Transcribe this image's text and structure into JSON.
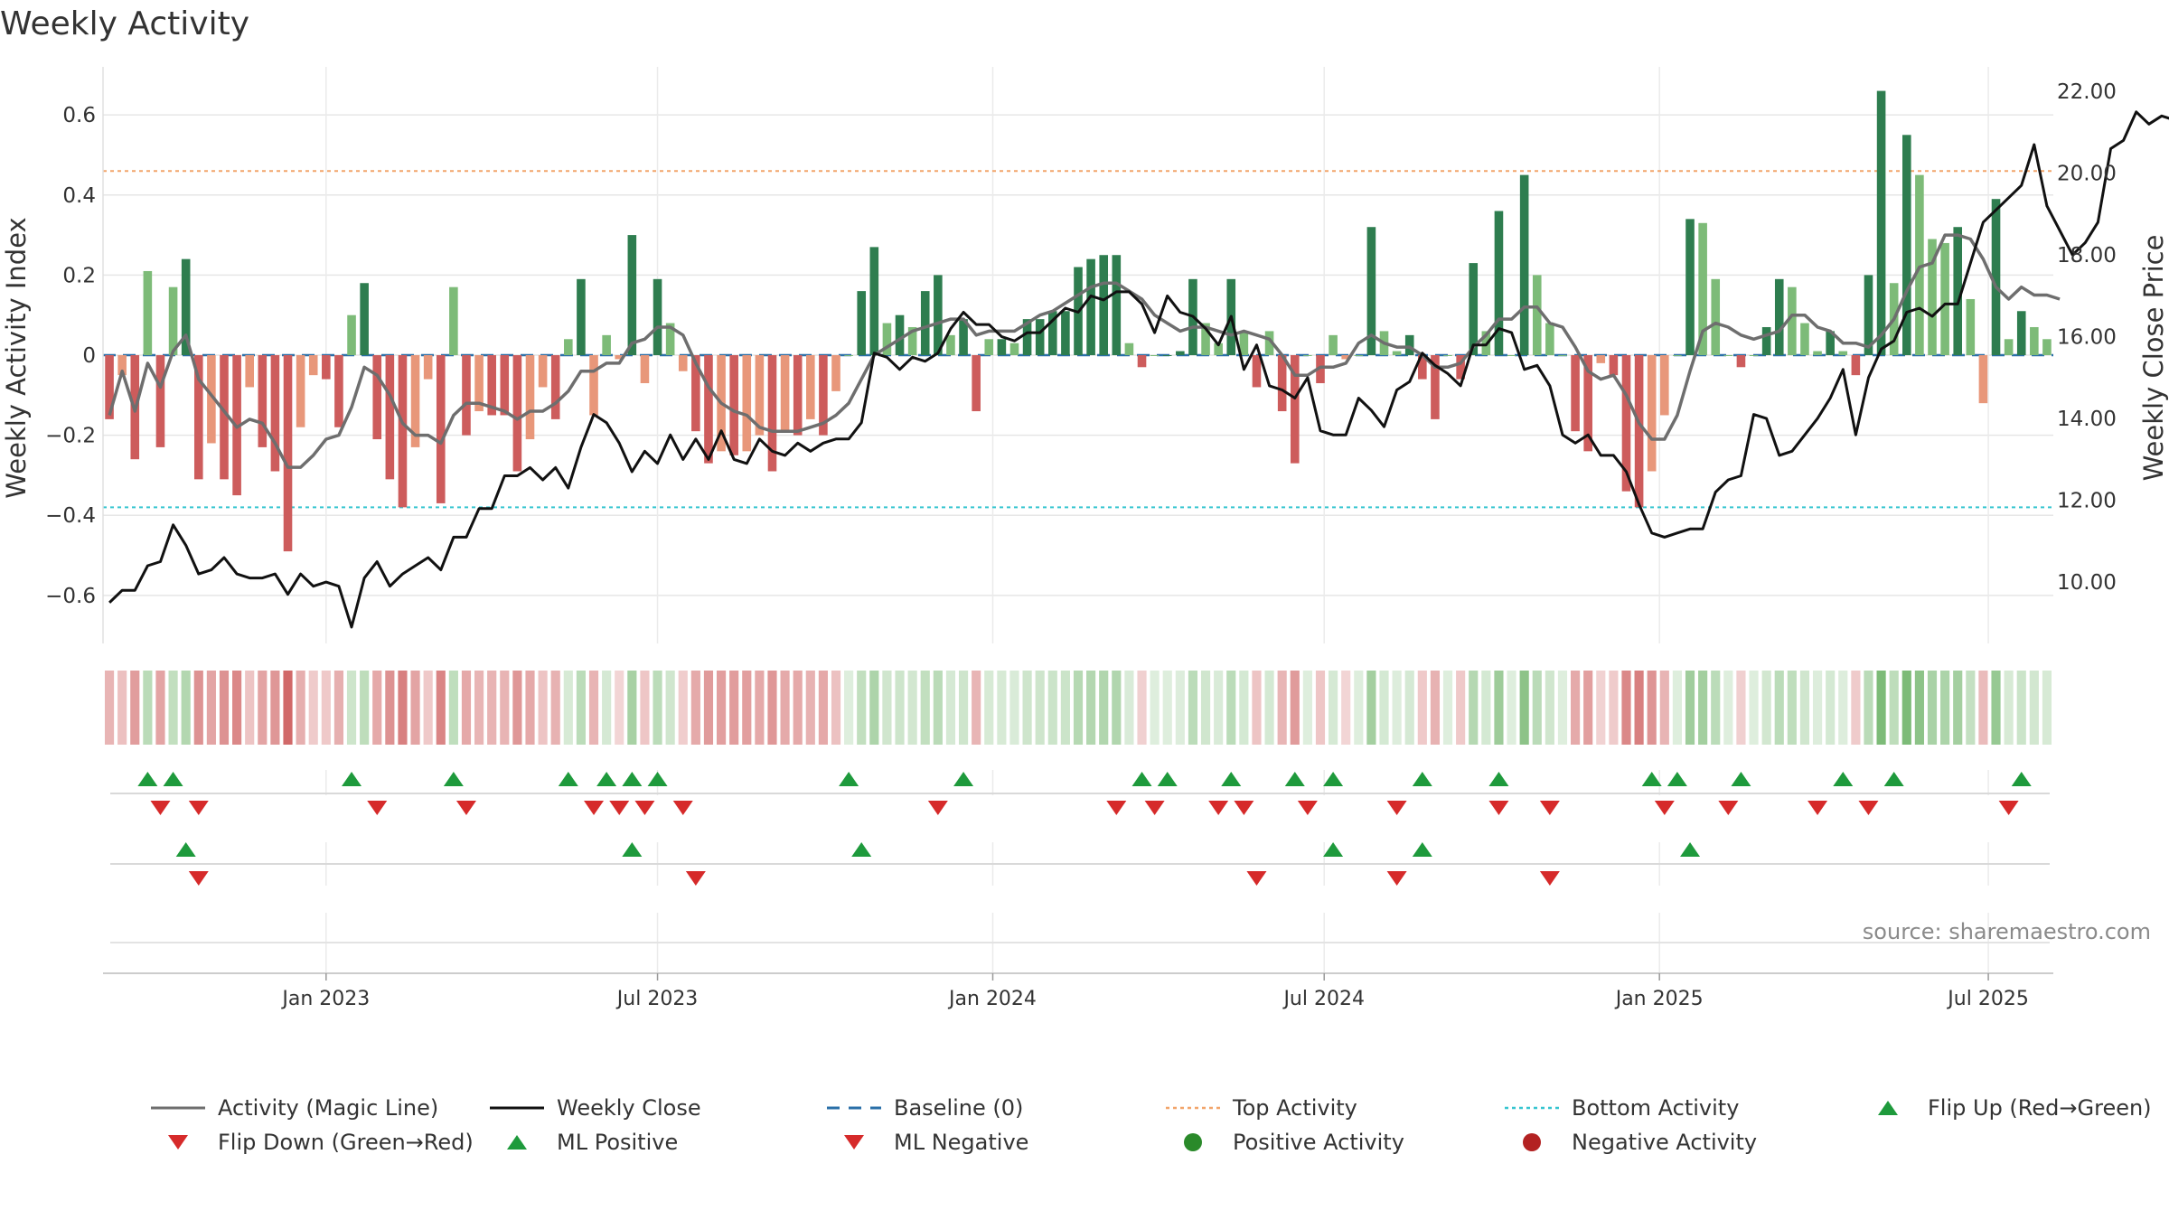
{
  "title": "Weekly Activity",
  "source": "source: sharemaestro.com",
  "colors": {
    "pos_strong": "#2e7d4f",
    "pos_light": "#7dbb78",
    "neg_strong": "#cd5c5c",
    "neg_light": "#e8977a",
    "magic": "#6e6e6e",
    "close": "#111111",
    "baseline": "#2a6fa8",
    "top": "#f2a56b",
    "bottom": "#36c5d0",
    "tri_up": "#1e9a3c",
    "tri_down": "#d62a2a",
    "pos_dot": "#2a8a2a",
    "neg_dot": "#b32222"
  },
  "chart_data": {
    "type": "bar+line",
    "title": "Weekly Activity",
    "ylabel_left": "Weekly Activity Index",
    "ylabel_right": "Weekly Close Price",
    "ylim_left": [
      -0.72,
      0.72
    ],
    "ylim_right": [
      8.5,
      22.6
    ],
    "yticks_left": [
      0.6,
      0.4,
      0.2,
      0,
      -0.2,
      -0.4,
      -0.6
    ],
    "ytick_labels_left": [
      "0.6",
      "0.4",
      "0.2",
      "0",
      "−0.2",
      "−0.4",
      "−0.6"
    ],
    "yticks_right": [
      22,
      20,
      18,
      16,
      14,
      12,
      10
    ],
    "ytick_labels_right": [
      "22.00",
      "20.00",
      "18.00",
      "16.00",
      "14.00",
      "12.00",
      "10.00"
    ],
    "x_start_week_offset": -17,
    "xticks": [
      {
        "label": "Jan 2023",
        "week": 0
      },
      {
        "label": "Jul 2023",
        "week": 26
      },
      {
        "label": "Jan 2024",
        "week": 52.3
      },
      {
        "label": "Jul 2024",
        "week": 78.3
      },
      {
        "label": "Jan 2025",
        "week": 104.6
      },
      {
        "label": "Jul 2025",
        "week": 130.4
      }
    ],
    "top_activity": 0.46,
    "bottom_activity": -0.38,
    "activity": [
      -0.16,
      -0.05,
      -0.26,
      0.21,
      -0.23,
      0.17,
      0.24,
      -0.31,
      -0.22,
      -0.31,
      -0.35,
      -0.08,
      -0.23,
      -0.29,
      -0.49,
      -0.18,
      -0.05,
      -0.06,
      -0.18,
      0.1,
      0.18,
      -0.21,
      -0.31,
      -0.38,
      -0.23,
      -0.06,
      -0.37,
      0.17,
      -0.2,
      -0.14,
      -0.15,
      -0.15,
      -0.29,
      -0.21,
      -0.08,
      -0.16,
      0.04,
      0.19,
      -0.15,
      0.05,
      -0.01,
      0.3,
      -0.07,
      0.19,
      0.08,
      -0.04,
      -0.19,
      -0.27,
      -0.24,
      -0.25,
      -0.24,
      -0.2,
      -0.29,
      -0.19,
      -0.2,
      -0.16,
      -0.2,
      -0.09,
      0.0,
      0.16,
      0.27,
      0.08,
      0.1,
      0.07,
      0.16,
      0.2,
      0.05,
      0.09,
      -0.14,
      0.04,
      0.04,
      0.03,
      0.09,
      0.09,
      0.11,
      0.11,
      0.22,
      0.24,
      0.25,
      0.25,
      0.03,
      -0.03,
      0.0,
      0.0,
      0.01,
      0.19,
      0.08,
      0.03,
      0.19,
      0.06,
      -0.08,
      0.06,
      -0.14,
      -0.27,
      0.0,
      -0.07,
      0.05,
      -0.01,
      0.0,
      0.32,
      0.06,
      0.01,
      0.05,
      -0.06,
      -0.16,
      0.0,
      -0.06,
      0.23,
      0.06,
      0.36,
      0.0,
      0.45,
      0.2,
      0.08,
      0.0,
      -0.19,
      -0.24,
      -0.02,
      -0.05,
      -0.34,
      -0.38,
      -0.29,
      -0.15,
      0.0,
      0.34,
      0.33,
      0.19,
      0.0,
      -0.03,
      0.0,
      0.07,
      0.19,
      0.17,
      0.08,
      0.01,
      0.06,
      0.01,
      -0.05,
      0.2,
      0.66,
      0.18,
      0.55,
      0.45,
      0.29,
      0.28,
      0.32,
      0.14,
      -0.12,
      0.39,
      0.04,
      0.11,
      0.07,
      0.04
    ],
    "magic_line": [
      -0.15,
      -0.04,
      -0.14,
      -0.02,
      -0.08,
      0.01,
      0.05,
      -0.06,
      -0.1,
      -0.14,
      -0.18,
      -0.16,
      -0.17,
      -0.22,
      -0.28,
      -0.28,
      -0.25,
      -0.21,
      -0.2,
      -0.13,
      -0.03,
      -0.05,
      -0.1,
      -0.17,
      -0.2,
      -0.2,
      -0.22,
      -0.15,
      -0.12,
      -0.12,
      -0.13,
      -0.14,
      -0.16,
      -0.14,
      -0.14,
      -0.12,
      -0.09,
      -0.04,
      -0.04,
      -0.02,
      -0.02,
      0.03,
      0.04,
      0.07,
      0.07,
      0.05,
      -0.02,
      -0.08,
      -0.12,
      -0.14,
      -0.15,
      -0.18,
      -0.19,
      -0.19,
      -0.19,
      -0.18,
      -0.17,
      -0.15,
      -0.12,
      -0.06,
      0.0,
      0.02,
      0.04,
      0.06,
      0.07,
      0.08,
      0.09,
      0.09,
      0.05,
      0.06,
      0.06,
      0.06,
      0.08,
      0.1,
      0.11,
      0.13,
      0.15,
      0.17,
      0.18,
      0.18,
      0.16,
      0.14,
      0.1,
      0.08,
      0.06,
      0.07,
      0.07,
      0.06,
      0.05,
      0.06,
      0.05,
      0.04,
      0.0,
      -0.05,
      -0.05,
      -0.03,
      -0.03,
      -0.02,
      0.03,
      0.05,
      0.03,
      0.02,
      0.02,
      0.0,
      -0.03,
      -0.03,
      -0.02,
      0.02,
      0.05,
      0.09,
      0.09,
      0.12,
      0.12,
      0.08,
      0.07,
      0.02,
      -0.04,
      -0.06,
      -0.05,
      -0.1,
      -0.17,
      -0.21,
      -0.21,
      -0.15,
      -0.04,
      0.06,
      0.08,
      0.07,
      0.05,
      0.04,
      0.05,
      0.06,
      0.1,
      0.1,
      0.07,
      0.06,
      0.03,
      0.03,
      0.02,
      0.05,
      0.09,
      0.16,
      0.22,
      0.23,
      0.3,
      0.3,
      0.29,
      0.24,
      0.17,
      0.14,
      0.17,
      0.15,
      0.15,
      0.14
    ],
    "weekly_close": [
      9.5,
      9.8,
      9.8,
      10.4,
      10.5,
      11.4,
      10.9,
      10.2,
      10.3,
      10.6,
      10.2,
      10.1,
      10.1,
      10.2,
      9.7,
      10.2,
      9.9,
      10.0,
      9.9,
      8.9,
      10.1,
      10.5,
      9.9,
      10.2,
      10.4,
      10.6,
      10.3,
      11.1,
      11.1,
      11.8,
      11.8,
      12.6,
      12.6,
      12.8,
      12.5,
      12.8,
      12.3,
      13.3,
      14.1,
      13.9,
      13.4,
      12.7,
      13.2,
      12.9,
      13.6,
      13.0,
      13.5,
      13.0,
      13.7,
      13.0,
      12.9,
      13.5,
      13.2,
      13.1,
      13.4,
      13.2,
      13.4,
      13.5,
      13.5,
      13.9,
      15.6,
      15.5,
      15.2,
      15.5,
      15.4,
      15.6,
      16.2,
      16.6,
      16.3,
      16.3,
      16.0,
      15.9,
      16.1,
      16.1,
      16.4,
      16.7,
      16.6,
      17.0,
      16.9,
      17.1,
      17.1,
      16.8,
      16.1,
      17.0,
      16.6,
      16.5,
      16.2,
      15.8,
      16.5,
      15.2,
      15.8,
      14.8,
      14.7,
      14.5,
      15.0,
      13.7,
      13.6,
      13.6,
      14.5,
      14.2,
      13.8,
      14.7,
      14.9,
      15.6,
      15.3,
      15.1,
      14.8,
      15.8,
      15.8,
      16.2,
      16.1,
      15.2,
      15.3,
      14.8,
      13.6,
      13.4,
      13.6,
      13.1,
      13.1,
      12.7,
      11.9,
      11.2,
      11.1,
      11.2,
      11.3,
      11.3,
      12.2,
      12.5,
      12.6,
      14.1,
      14.0,
      13.1,
      13.2,
      13.6,
      14.0,
      14.5,
      15.2,
      13.6,
      15.0,
      15.7,
      15.9,
      16.6,
      16.7,
      16.5,
      16.8,
      16.8,
      17.8,
      18.8,
      19.1,
      19.4,
      19.7,
      20.7,
      19.2,
      18.6,
      18.0,
      18.3,
      18.8,
      20.6,
      20.8,
      21.5,
      21.2,
      21.4,
      21.3,
      21.7
    ],
    "flip_up": [
      3,
      5,
      19,
      27,
      36,
      39,
      41,
      43,
      58,
      67,
      81,
      83,
      88,
      93,
      96,
      103,
      109,
      121,
      123,
      128,
      136,
      140,
      150
    ],
    "flip_down": [
      4,
      7,
      21,
      28,
      38,
      40,
      42,
      45,
      65,
      79,
      82,
      87,
      89,
      94,
      101,
      109,
      113,
      122,
      127,
      134,
      138,
      149
    ],
    "ml_positive": [
      6,
      41,
      59,
      96,
      103,
      124
    ],
    "ml_negative": [
      7,
      46,
      90,
      101,
      113
    ],
    "strip_values": [
      -0.15,
      -0.1,
      -0.25,
      0.2,
      -0.22,
      0.16,
      0.24,
      -0.3,
      -0.22,
      -0.3,
      -0.34,
      -0.08,
      -0.22,
      -0.28,
      -0.48,
      -0.17,
      -0.05,
      -0.06,
      -0.17,
      0.1,
      0.18,
      -0.2,
      -0.3,
      -0.38,
      -0.22,
      -0.06,
      -0.36,
      0.17,
      -0.2,
      -0.14,
      -0.15,
      -0.15,
      -0.28,
      -0.2,
      -0.08,
      -0.16,
      0.04,
      0.19,
      -0.15,
      0.05,
      -0.01,
      0.3,
      -0.07,
      0.19,
      0.08,
      -0.04,
      -0.19,
      -0.26,
      -0.24,
      -0.25,
      -0.24,
      -0.2,
      -0.28,
      -0.19,
      -0.2,
      -0.16,
      -0.2,
      -0.09,
      0.0,
      0.16,
      0.27,
      0.08,
      0.1,
      0.07,
      0.16,
      0.2,
      0.05,
      0.09,
      -0.14,
      0.04,
      0.04,
      0.03,
      0.09,
      0.09,
      0.11,
      0.11,
      0.22,
      0.24,
      0.25,
      0.25,
      0.03,
      -0.03,
      0.0,
      0.0,
      0.01,
      0.19,
      0.08,
      0.03,
      0.19,
      0.06,
      -0.08,
      0.06,
      -0.14,
      -0.26,
      0.0,
      -0.07,
      0.05,
      -0.01,
      0.0,
      0.32,
      0.06,
      0.01,
      0.05,
      -0.06,
      -0.16,
      0.0,
      -0.06,
      0.23,
      0.06,
      0.36,
      0.0,
      0.45,
      0.2,
      0.08,
      0.0,
      -0.19,
      -0.24,
      -0.02,
      -0.05,
      -0.34,
      -0.38,
      -0.29,
      -0.15,
      0.0,
      0.34,
      0.33,
      0.19,
      0.0,
      -0.03,
      0.0,
      0.07,
      0.19,
      0.17,
      0.08,
      0.01,
      0.06,
      0.01,
      -0.05,
      0.2,
      0.66,
      0.18,
      0.55,
      0.45,
      0.29,
      0.28,
      0.32,
      0.14,
      -0.12,
      0.39,
      0.04,
      0.11,
      0.07,
      0.04
    ]
  },
  "legend": [
    {
      "key": "magic",
      "label": "Activity (Magic Line)",
      "symbol": "line"
    },
    {
      "key": "close",
      "label": "Weekly Close",
      "symbol": "line"
    },
    {
      "key": "baseline",
      "label": "Baseline (0)",
      "symbol": "dashed"
    },
    {
      "key": "top",
      "label": "Top Activity",
      "symbol": "dotted"
    },
    {
      "key": "bottom",
      "label": "Bottom Activity",
      "symbol": "dotted"
    },
    {
      "key": "tri_up",
      "label": "Flip Up (Red→Green)",
      "symbol": "tri-up"
    },
    {
      "key": "tri_down",
      "label": "Flip Down (Green→Red)",
      "symbol": "tri-down"
    },
    {
      "key": "tri_up",
      "label": "ML Positive",
      "symbol": "tri-up"
    },
    {
      "key": "tri_down",
      "label": "ML Negative",
      "symbol": "tri-down"
    },
    {
      "key": "pos_dot",
      "label": "Positive Activity",
      "symbol": "dot"
    },
    {
      "key": "neg_dot",
      "label": "Negative Activity",
      "symbol": "dot"
    }
  ]
}
